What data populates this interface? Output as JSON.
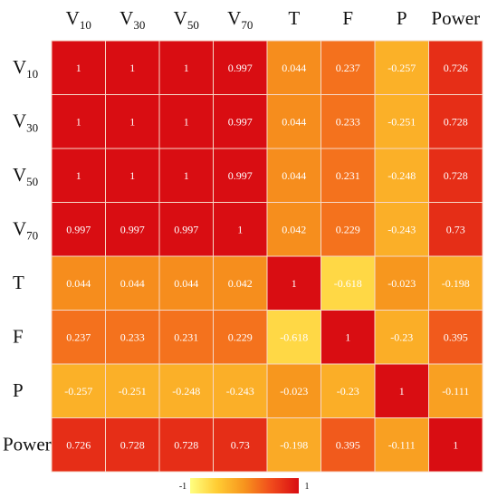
{
  "chart_data": {
    "type": "heatmap",
    "variables": [
      {
        "base": "V",
        "sub": "10"
      },
      {
        "base": "V",
        "sub": "30"
      },
      {
        "base": "V",
        "sub": "50"
      },
      {
        "base": "V",
        "sub": "70"
      },
      {
        "base": "T",
        "sub": ""
      },
      {
        "base": "F",
        "sub": ""
      },
      {
        "base": "P",
        "sub": ""
      },
      {
        "base": "Power",
        "sub": ""
      }
    ],
    "labels": [
      [
        "1",
        "1",
        "1",
        "0.997",
        "0.044",
        "0.237",
        "-0.257",
        "0.726"
      ],
      [
        "1",
        "1",
        "1",
        "0.997",
        "0.044",
        "0.233",
        "-0.251",
        "0.728"
      ],
      [
        "1",
        "1",
        "1",
        "0.997",
        "0.044",
        "0.231",
        "-0.248",
        "0.728"
      ],
      [
        "0.997",
        "0.997",
        "0.997",
        "1",
        "0.042",
        "0.229",
        "-0.243",
        "0.73"
      ],
      [
        "0.044",
        "0.044",
        "0.044",
        "0.042",
        "1",
        "-0.618",
        "-0.023",
        "-0.198"
      ],
      [
        "0.237",
        "0.233",
        "0.231",
        "0.229",
        "-0.618",
        "1",
        "-0.23",
        "0.395"
      ],
      [
        "-0.257",
        "-0.251",
        "-0.248",
        "-0.243",
        "-0.023",
        "-0.23",
        "1",
        "-0.111"
      ],
      [
        "0.726",
        "0.728",
        "0.728",
        "0.73",
        "-0.198",
        "0.395",
        "-0.111",
        "1"
      ]
    ],
    "color_scale": {
      "min": -1,
      "max": 1,
      "min_label": "-1",
      "max_label": "1",
      "colors": [
        "#ffff80",
        "#ffcc33",
        "#f7941d",
        "#f04a1c",
        "#d90d12"
      ]
    }
  }
}
